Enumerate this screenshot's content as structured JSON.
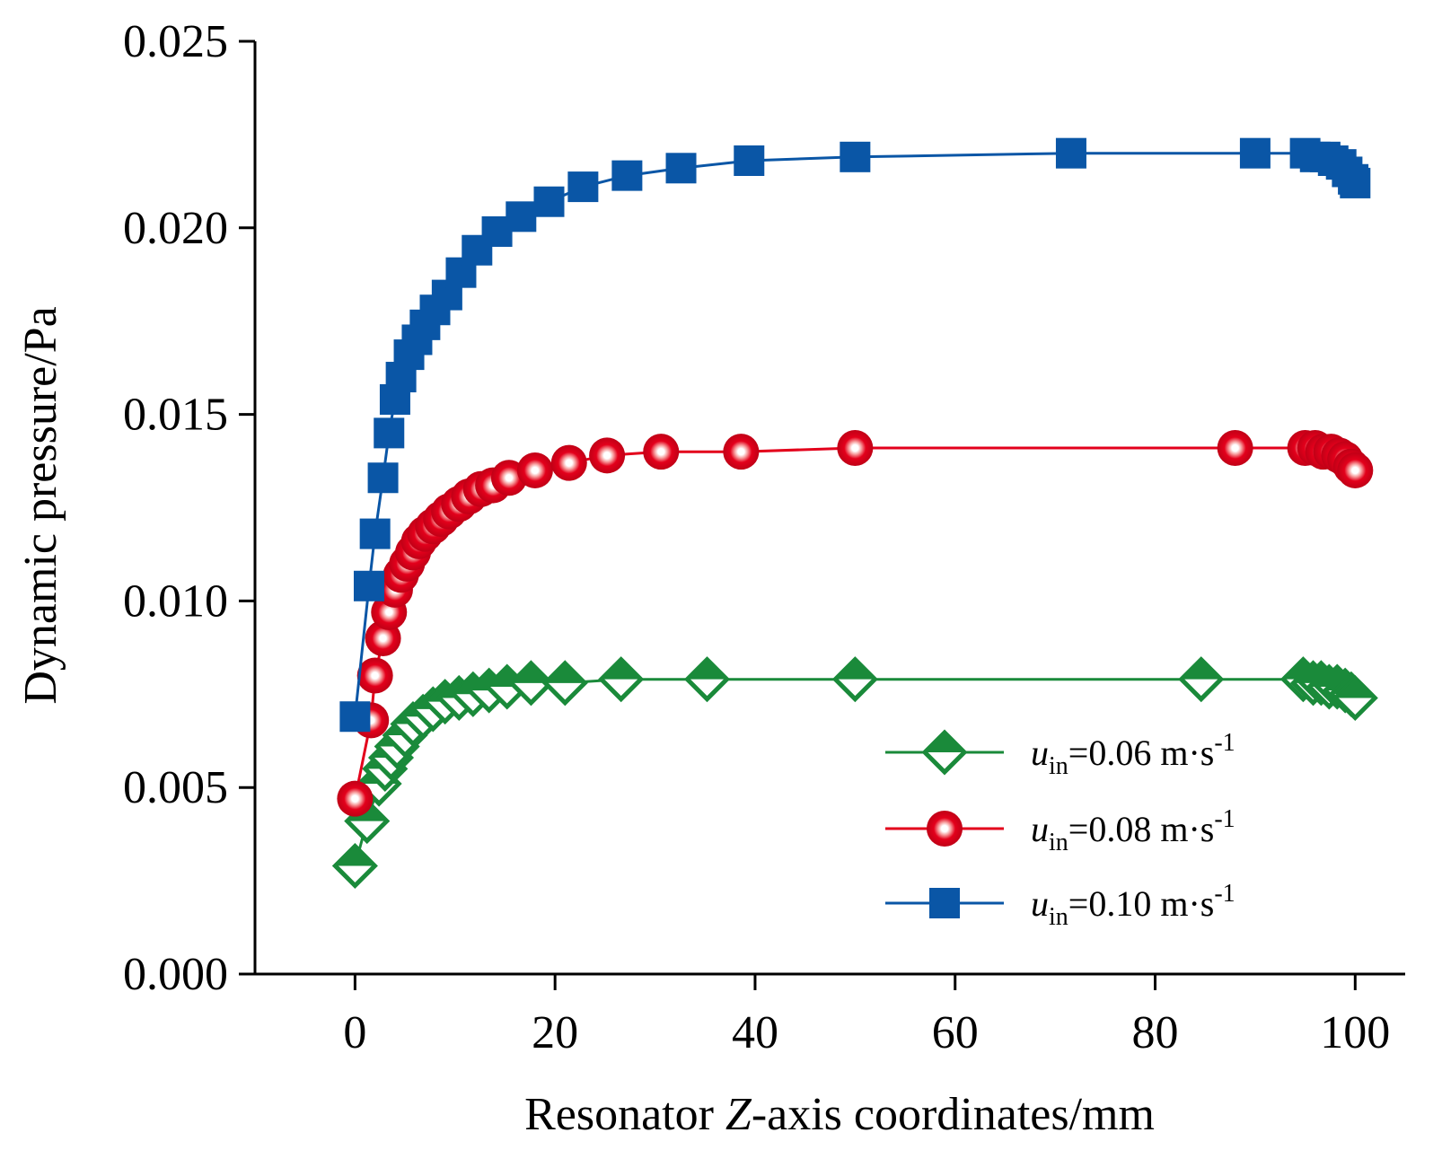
{
  "chart_data": {
    "type": "line",
    "xlabel_parts": [
      "Resonator ",
      "Z",
      "-axis coordinates/mm"
    ],
    "ylabel": "Dynamic pressure/Pa",
    "xlim": [
      -10,
      105
    ],
    "ylim": [
      0,
      0.025
    ],
    "x_ticks": [
      0,
      20,
      40,
      60,
      80,
      100
    ],
    "x_tick_labels": [
      "0",
      "20",
      "40",
      "60",
      "80",
      "100"
    ],
    "y_ticks": [
      0,
      0.005,
      0.01,
      0.015,
      0.02,
      0.025
    ],
    "y_tick_labels": [
      "0.000",
      "0.005",
      "0.010",
      "0.015",
      "0.020",
      "0.025"
    ],
    "grid": false,
    "legend_position": "bottom-right",
    "series": [
      {
        "label_var": "u",
        "label_sub": "in",
        "label_value": "=0.06 m·s",
        "label_sup": "-1",
        "marker": "diamond",
        "color": "#1a8a3a",
        "x": [
          0,
          1.2,
          2.4,
          3.0,
          3.6,
          4.2,
          5.0,
          5.8,
          6.8,
          7.8,
          9.0,
          10.4,
          11.8,
          13.4,
          15.2,
          17.6,
          21.0,
          26.6,
          35.2,
          50.0,
          84.6,
          94.8,
          95.8,
          96.6,
          97.4,
          98.2,
          99.0,
          99.6,
          100.0
        ],
        "y": [
          0.0029,
          0.0041,
          0.0051,
          0.0055,
          0.0058,
          0.0061,
          0.0064,
          0.0067,
          0.0069,
          0.0071,
          0.0073,
          0.0074,
          0.0075,
          0.0076,
          0.0077,
          0.0078,
          0.0078,
          0.0079,
          0.0079,
          0.0079,
          0.0079,
          0.0079,
          0.0078,
          0.0078,
          0.0077,
          0.0077,
          0.0076,
          0.0075,
          0.0074
        ]
      },
      {
        "label_var": "u",
        "label_sub": "in",
        "label_value": "=0.08 m·s",
        "label_sup": "-1",
        "marker": "circle",
        "color": "#e3001b",
        "x": [
          0,
          1.6,
          2.0,
          2.8,
          3.4,
          4.0,
          4.6,
          5.2,
          5.8,
          6.4,
          7.0,
          7.8,
          8.6,
          9.4,
          10.4,
          11.4,
          12.6,
          13.8,
          15.4,
          18.0,
          21.4,
          25.2,
          30.6,
          38.6,
          50.0,
          88.0,
          95.0,
          96.0,
          96.8,
          97.6,
          98.4,
          99.0,
          99.6,
          100.0
        ],
        "y": [
          0.0047,
          0.0068,
          0.008,
          0.009,
          0.0097,
          0.0103,
          0.0107,
          0.011,
          0.0113,
          0.0116,
          0.0118,
          0.012,
          0.0122,
          0.0124,
          0.0126,
          0.0128,
          0.013,
          0.0131,
          0.0133,
          0.0135,
          0.0137,
          0.0139,
          0.014,
          0.014,
          0.0141,
          0.0141,
          0.0141,
          0.0141,
          0.014,
          0.014,
          0.0139,
          0.0138,
          0.0136,
          0.0135
        ]
      },
      {
        "label_var": "u",
        "label_sub": "in",
        "label_value": "=0.10 m·s",
        "label_sup": "-1",
        "marker": "square",
        "color": "#0a56a6",
        "x": [
          0,
          1.4,
          2.0,
          2.8,
          3.4,
          4.0,
          4.6,
          5.4,
          6.2,
          7.0,
          8.0,
          9.2,
          10.6,
          12.2,
          14.2,
          16.6,
          19.4,
          22.8,
          27.2,
          32.6,
          39.4,
          50.0,
          71.6,
          90.0,
          95.0,
          96.0,
          97.0,
          97.8,
          98.6,
          99.2,
          99.8,
          100.0
        ],
        "y": [
          0.0069,
          0.0104,
          0.0118,
          0.0133,
          0.0145,
          0.0154,
          0.016,
          0.0166,
          0.017,
          0.0174,
          0.0178,
          0.0182,
          0.0188,
          0.0194,
          0.0199,
          0.0203,
          0.0207,
          0.0211,
          0.0214,
          0.0216,
          0.0218,
          0.0219,
          0.022,
          0.022,
          0.022,
          0.0219,
          0.0219,
          0.0218,
          0.0217,
          0.0215,
          0.0213,
          0.0212
        ]
      }
    ]
  }
}
